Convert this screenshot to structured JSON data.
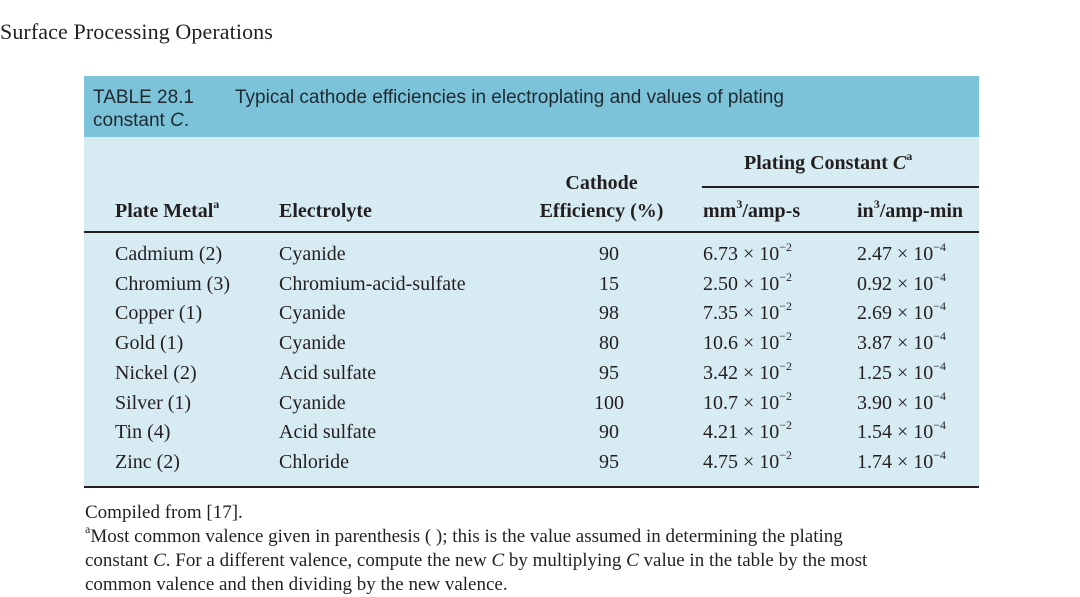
{
  "page": {
    "running_head": "Surface Processing Operations"
  },
  "table": {
    "label": "TABLE 28.1",
    "caption": "Typical cathode efficiencies in electroplating and values of plating",
    "caption_line2_prefix": "constant ",
    "caption_symbol": "C",
    "caption_end": ".",
    "headers": {
      "plate_metal": "Plate Metal",
      "plate_metal_note": "a",
      "electrolyte": "Electrolyte",
      "efficiency_line1": "Cathode",
      "efficiency_line2": "Efficiency (%)",
      "plating_constant": "Plating Constant ",
      "plating_constant_symbol": "C",
      "plating_constant_note": "a",
      "mm_unit_prefix": "mm",
      "mm_unit_exp": "3",
      "mm_unit_suffix": "/amp-s",
      "in_unit_prefix": "in",
      "in_unit_exp": "3",
      "in_unit_suffix": "/amp-min"
    },
    "rows": [
      {
        "metal": "Cadmium (2)",
        "electrolyte": "Cyanide",
        "efficiency": "90",
        "mm_mantissa": "6.73 × 10",
        "mm_exp": "−2",
        "in_mantissa": "2.47 × 10",
        "in_exp": "−4"
      },
      {
        "metal": "Chromium (3)",
        "electrolyte": "Chromium-acid-sulfate",
        "efficiency": "15",
        "mm_mantissa": "2.50 × 10",
        "mm_exp": "−2",
        "in_mantissa": "0.92 × 10",
        "in_exp": "−4"
      },
      {
        "metal": "Copper (1)",
        "electrolyte": "Cyanide",
        "efficiency": "98",
        "mm_mantissa": "7.35 × 10",
        "mm_exp": "−2",
        "in_mantissa": "2.69 × 10",
        "in_exp": "−4"
      },
      {
        "metal": "Gold (1)",
        "electrolyte": "Cyanide",
        "efficiency": "80",
        "mm_mantissa": "10.6 × 10",
        "mm_exp": "−2",
        "in_mantissa": "3.87 × 10",
        "in_exp": "−4"
      },
      {
        "metal": "Nickel (2)",
        "electrolyte": "Acid sulfate",
        "efficiency": "95",
        "mm_mantissa": "3.42 × 10",
        "mm_exp": "−2",
        "in_mantissa": "1.25 × 10",
        "in_exp": "−4"
      },
      {
        "metal": "Silver (1)",
        "electrolyte": "Cyanide",
        "efficiency": "100",
        "mm_mantissa": "10.7 × 10",
        "mm_exp": "−2",
        "in_mantissa": "3.90 × 10",
        "in_exp": "−4"
      },
      {
        "metal": "Tin (4)",
        "electrolyte": "Acid sulfate",
        "efficiency": "90",
        "mm_mantissa": "4.21 × 10",
        "mm_exp": "−2",
        "in_mantissa": "1.54 × 10",
        "in_exp": "−4"
      },
      {
        "metal": "Zinc (2)",
        "electrolyte": "Chloride",
        "efficiency": "95",
        "mm_mantissa": "4.75 × 10",
        "mm_exp": "−2",
        "in_mantissa": "1.74 × 10",
        "in_exp": "−4"
      }
    ]
  },
  "notes": {
    "source": "Compiled from [17].",
    "footnote_marker": "a",
    "footnote_line1": "Most common valence given in parenthesis ( ); this is the value assumed in determining the plating",
    "footnote_line2_a": "constant ",
    "footnote_line2_sym1": "C",
    "footnote_line2_b": ". For a different valence, compute the new ",
    "footnote_line2_sym2": "C",
    "footnote_line2_c": " by multiplying ",
    "footnote_line2_sym3": "C",
    "footnote_line2_d": " value in the table by the most",
    "footnote_line3": "common valence and then dividing by the new valence."
  }
}
